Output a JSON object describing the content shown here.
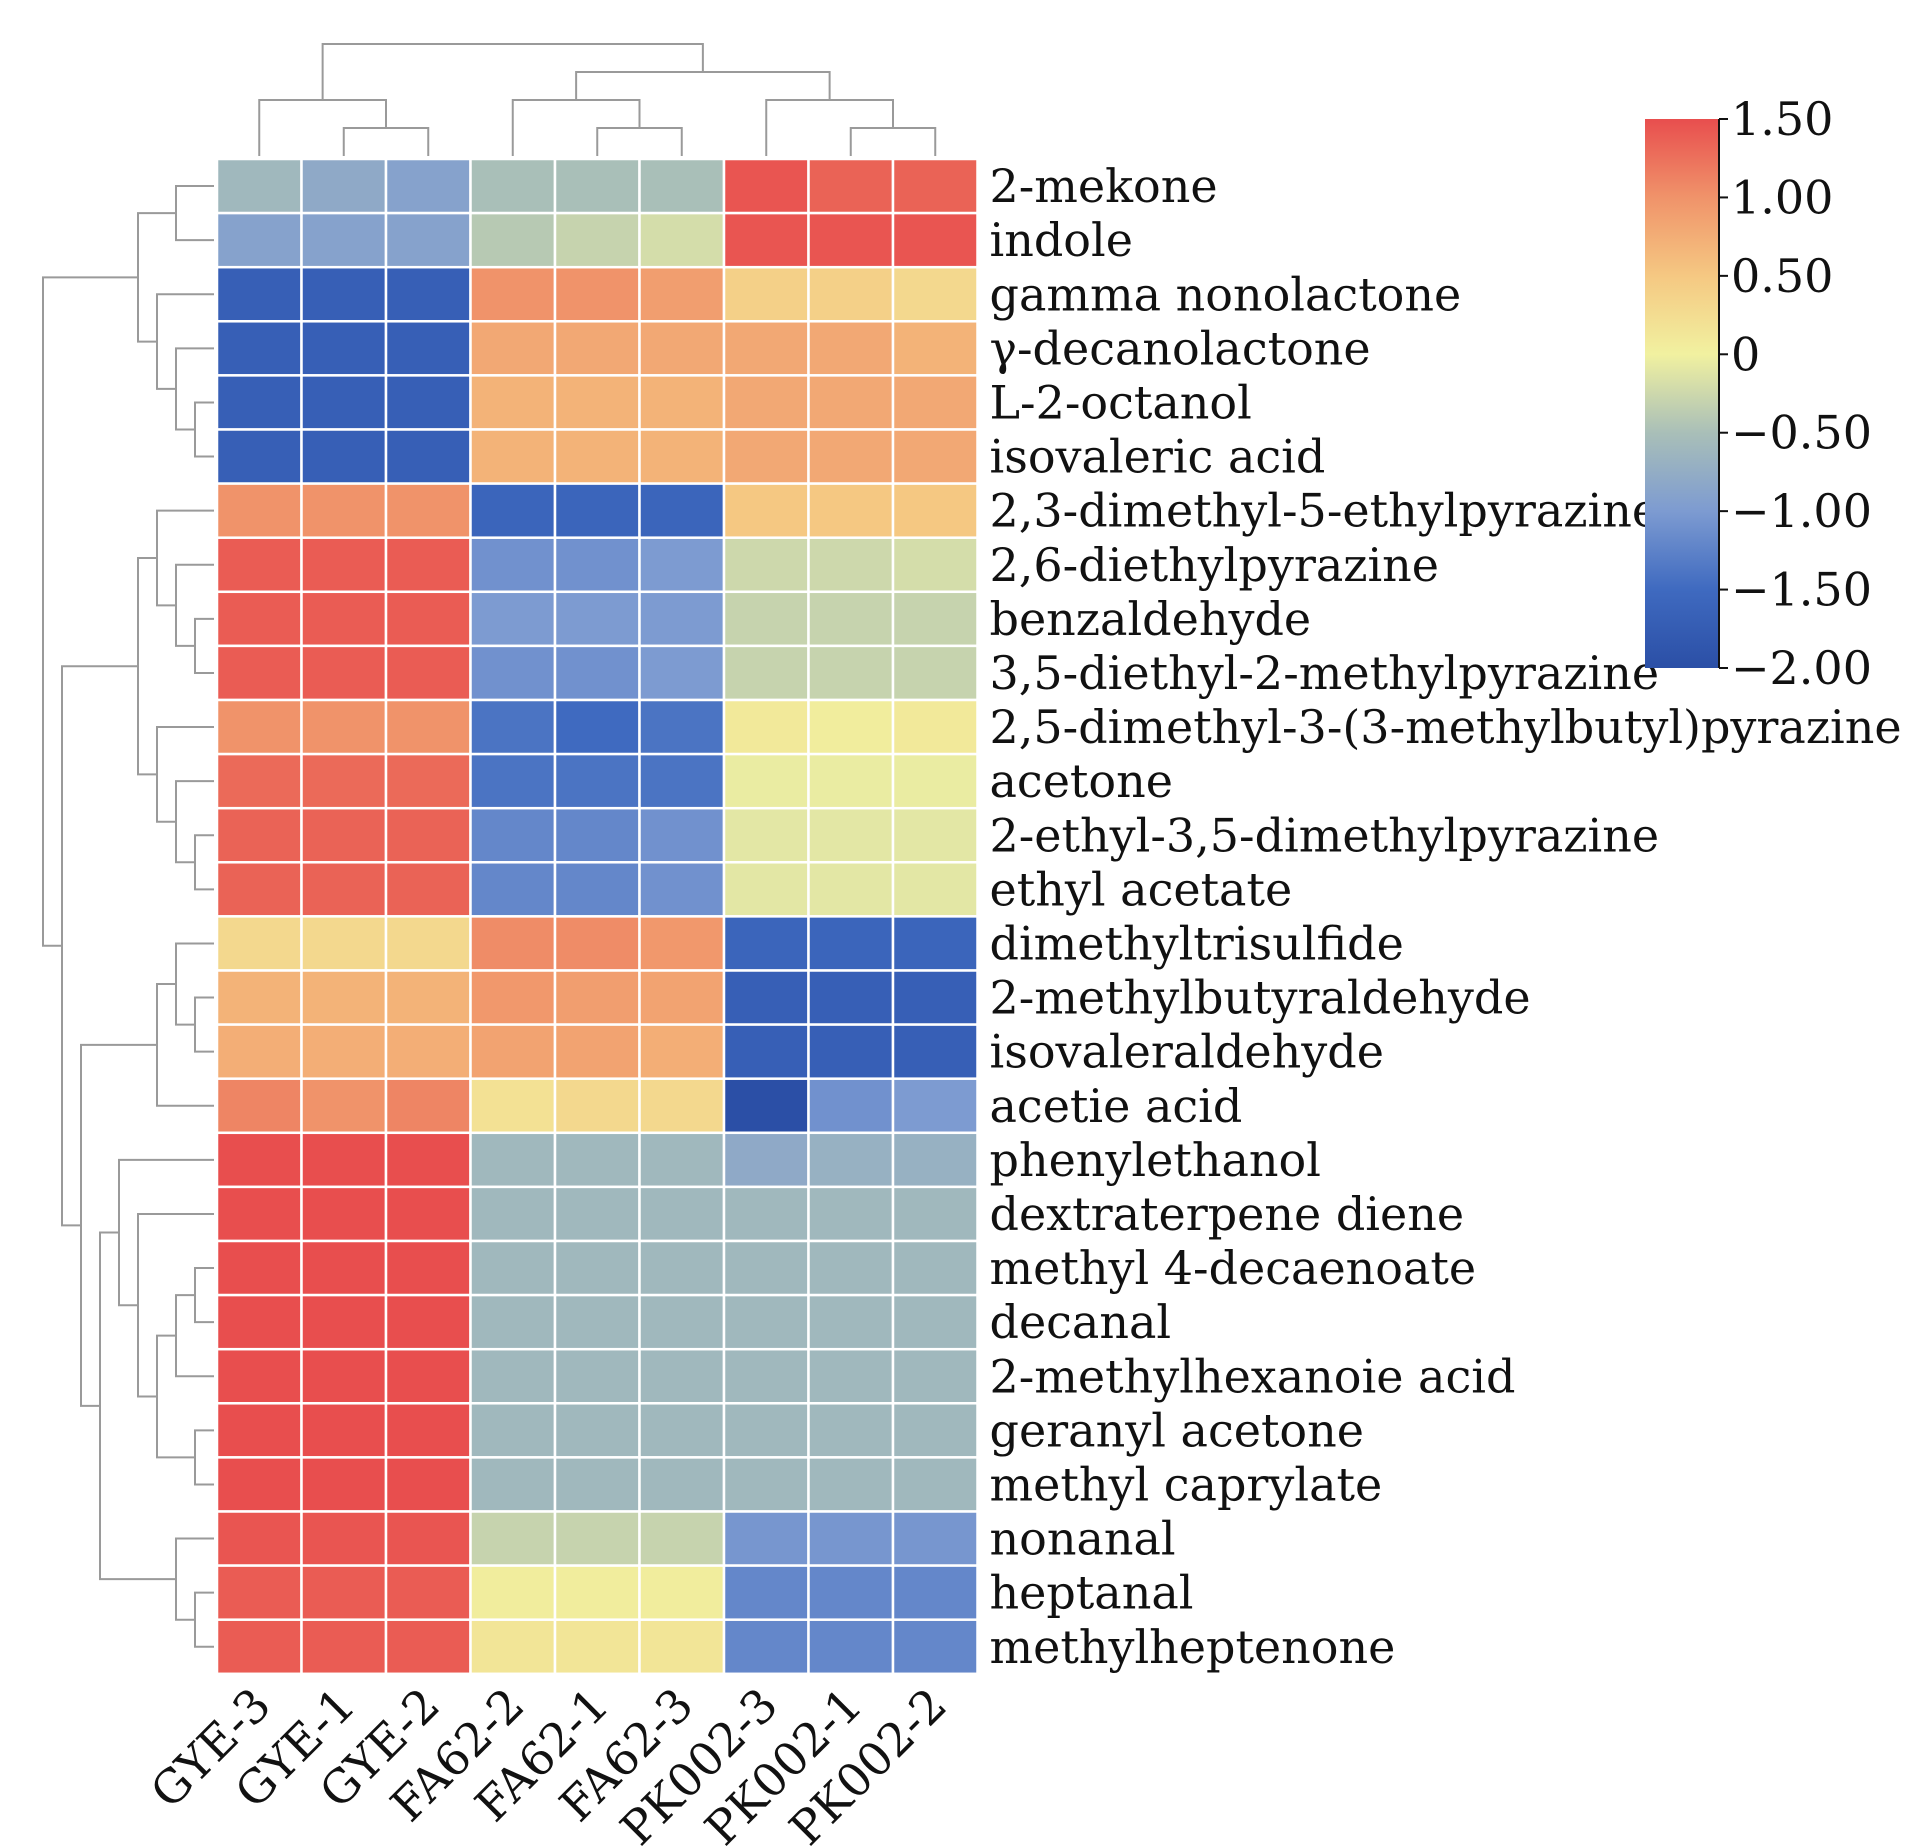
{
  "chart_data": {
    "type": "heatmap",
    "columns": [
      "GYE-3",
      "GYE-1",
      "GYE-2",
      "FA62-2",
      "FA62-1",
      "FA62-3",
      "PK002-3",
      "PK002-1",
      "PK002-2"
    ],
    "rows": [
      "2-mekone",
      "indole",
      "gamma nonolactone",
      "γ-decanolactone",
      "L-2-octanol",
      "isovaleric acid",
      "2,3-dimethyl-5-ethylpyrazine",
      "2,6-diethylpyrazine",
      "benzaldehyde",
      "3,5-diethyl-2-methylpyrazine",
      "2,5-dimethyl-3-(3-methylbutyl)pyrazine",
      "acetone",
      "2-ethyl-3,5-dimethylpyrazine",
      "ethyl acetate",
      "dimethyltrisulfide",
      "2-methylbutyraldehyde",
      "isovaleraldehyde",
      "acetie acid",
      "phenylethanol",
      "dextraterpene diene",
      "methyl 4-decaenoate",
      "decanal",
      "2-methylhexanoie acid",
      "geranyl acetone",
      "methyl caprylate",
      "nonanal",
      "heptanal",
      "methylheptenone"
    ],
    "values": [
      [
        -0.6,
        -0.8,
        -0.9,
        -0.5,
        -0.5,
        -0.5,
        1.45,
        1.35,
        1.35
      ],
      [
        -0.9,
        -0.9,
        -0.9,
        -0.4,
        -0.3,
        -0.2,
        1.45,
        1.45,
        1.45
      ],
      [
        -1.7,
        -1.7,
        -1.7,
        1.0,
        1.0,
        0.9,
        0.4,
        0.4,
        0.3
      ],
      [
        -1.7,
        -1.7,
        -1.7,
        0.8,
        0.8,
        0.8,
        0.8,
        0.8,
        0.7
      ],
      [
        -1.7,
        -1.7,
        -1.7,
        0.7,
        0.7,
        0.7,
        0.8,
        0.8,
        0.8
      ],
      [
        -1.7,
        -1.7,
        -1.7,
        0.7,
        0.7,
        0.7,
        0.8,
        0.8,
        0.8
      ],
      [
        1.0,
        1.0,
        1.0,
        -1.6,
        -1.6,
        -1.6,
        0.5,
        0.5,
        0.5
      ],
      [
        1.4,
        1.4,
        1.4,
        -1.1,
        -1.1,
        -1.0,
        -0.25,
        -0.25,
        -0.2
      ],
      [
        1.4,
        1.4,
        1.4,
        -1.0,
        -1.0,
        -1.0,
        -0.3,
        -0.3,
        -0.3
      ],
      [
        1.4,
        1.4,
        1.4,
        -1.1,
        -1.1,
        -1.0,
        -0.3,
        -0.3,
        -0.3
      ],
      [
        1.0,
        1.0,
        1.0,
        -1.4,
        -1.5,
        -1.4,
        0.1,
        0.05,
        0.1
      ],
      [
        1.3,
        1.3,
        1.3,
        -1.4,
        -1.4,
        -1.4,
        -0.05,
        -0.05,
        -0.05
      ],
      [
        1.35,
        1.35,
        1.35,
        -1.2,
        -1.2,
        -1.1,
        -0.1,
        -0.1,
        -0.1
      ],
      [
        1.35,
        1.35,
        1.35,
        -1.2,
        -1.2,
        -1.1,
        -0.1,
        -0.1,
        -0.1
      ],
      [
        0.3,
        0.3,
        0.3,
        1.05,
        1.05,
        0.95,
        -1.6,
        -1.6,
        -1.6
      ],
      [
        0.7,
        0.7,
        0.7,
        0.95,
        0.9,
        0.85,
        -1.7,
        -1.7,
        -1.7
      ],
      [
        0.75,
        0.75,
        0.75,
        0.85,
        0.85,
        0.75,
        -1.7,
        -1.7,
        -1.7
      ],
      [
        1.1,
        1.0,
        1.1,
        0.2,
        0.3,
        0.3,
        -2.0,
        -1.1,
        -1.0
      ],
      [
        1.5,
        1.5,
        1.5,
        -0.6,
        -0.6,
        -0.6,
        -0.8,
        -0.7,
        -0.7
      ],
      [
        1.5,
        1.5,
        1.5,
        -0.6,
        -0.6,
        -0.6,
        -0.6,
        -0.6,
        -0.6
      ],
      [
        1.5,
        1.5,
        1.5,
        -0.6,
        -0.6,
        -0.6,
        -0.6,
        -0.6,
        -0.6
      ],
      [
        1.5,
        1.5,
        1.5,
        -0.6,
        -0.6,
        -0.6,
        -0.6,
        -0.6,
        -0.6
      ],
      [
        1.5,
        1.5,
        1.5,
        -0.6,
        -0.6,
        -0.6,
        -0.6,
        -0.6,
        -0.6
      ],
      [
        1.5,
        1.5,
        1.5,
        -0.6,
        -0.6,
        -0.6,
        -0.6,
        -0.6,
        -0.6
      ],
      [
        1.5,
        1.5,
        1.5,
        -0.6,
        -0.6,
        -0.6,
        -0.6,
        -0.6,
        -0.6
      ],
      [
        1.45,
        1.45,
        1.45,
        -0.3,
        -0.3,
        -0.3,
        -1.05,
        -1.05,
        -1.05
      ],
      [
        1.4,
        1.4,
        1.4,
        0.05,
        0.05,
        0.05,
        -1.2,
        -1.2,
        -1.2
      ],
      [
        1.4,
        1.4,
        1.4,
        0.15,
        0.15,
        0.15,
        -1.2,
        -1.2,
        -1.2
      ]
    ],
    "colorbar": {
      "ticks": [
        1.5,
        1.0,
        0.5,
        0,
        -0.5,
        -1.0,
        -1.5,
        -2.0
      ],
      "tick_labels": [
        "1.50",
        "1.00",
        "0.50",
        "0",
        "−0.50",
        "−1.00",
        "−1.50",
        "−2.00"
      ],
      "range": [
        -2.0,
        1.5
      ],
      "colors": [
        {
          "v": -2.0,
          "c": "#2b4fa6"
        },
        {
          "v": -1.5,
          "c": "#3f6ac0"
        },
        {
          "v": -1.0,
          "c": "#7d9bd1"
        },
        {
          "v": -0.5,
          "c": "#a9bfb8"
        },
        {
          "v": 0.0,
          "c": "#f1f1a0"
        },
        {
          "v": 0.5,
          "c": "#f5c882"
        },
        {
          "v": 1.0,
          "c": "#f0936a"
        },
        {
          "v": 1.5,
          "c": "#e84e4e"
        }
      ]
    },
    "col_dendrogram": [
      {
        "a": 1,
        "b": 2,
        "h": 1
      },
      {
        "a": 0,
        "b": "n0",
        "h": 2
      },
      {
        "a": 4,
        "b": 5,
        "h": 1
      },
      {
        "a": 3,
        "b": "n2",
        "h": 2
      },
      {
        "a": 7,
        "b": 8,
        "h": 1
      },
      {
        "a": 6,
        "b": "n4",
        "h": 2
      },
      {
        "a": "n3",
        "b": "n5",
        "h": 3
      },
      {
        "a": "n1",
        "b": "n6",
        "h": 4
      }
    ],
    "row_dendrogram": [
      {
        "a": 0,
        "b": 1,
        "h": 2
      },
      {
        "a": 4,
        "b": 5,
        "h": 1
      },
      {
        "a": 3,
        "b": "n1",
        "h": 2
      },
      {
        "a": 2,
        "b": "n2",
        "h": 3
      },
      {
        "a": "n0",
        "b": "n3",
        "h": 4
      },
      {
        "a": 8,
        "b": 9,
        "h": 1
      },
      {
        "a": 7,
        "b": "n5",
        "h": 2
      },
      {
        "a": 6,
        "b": "n6",
        "h": 3
      },
      {
        "a": 12,
        "b": 13,
        "h": 1
      },
      {
        "a": 11,
        "b": "n8",
        "h": 2
      },
      {
        "a": 10,
        "b": "n9",
        "h": 3
      },
      {
        "a": "n7",
        "b": "n10",
        "h": 4
      },
      {
        "a": 15,
        "b": 16,
        "h": 1
      },
      {
        "a": 14,
        "b": "n12",
        "h": 2
      },
      {
        "a": "n13",
        "b": 17,
        "h": 3
      },
      {
        "a": 20,
        "b": 21,
        "h": 1
      },
      {
        "a": "n15",
        "b": 22,
        "h": 2
      },
      {
        "a": 23,
        "b": 24,
        "h": 1
      },
      {
        "a": "n16",
        "b": "n17",
        "h": 3
      },
      {
        "a": 19,
        "b": "n18",
        "h": 4
      },
      {
        "a": 18,
        "b": "n19",
        "h": 5
      },
      {
        "a": 26,
        "b": 27,
        "h": 1
      },
      {
        "a": 25,
        "b": "n21",
        "h": 2
      },
      {
        "a": "n20",
        "b": "n22",
        "h": 6
      },
      {
        "a": "n14",
        "b": "n23",
        "h": 7
      },
      {
        "a": "n11",
        "b": "n24",
        "h": 8
      },
      {
        "a": "n4",
        "b": "n25",
        "h": 9
      }
    ]
  }
}
